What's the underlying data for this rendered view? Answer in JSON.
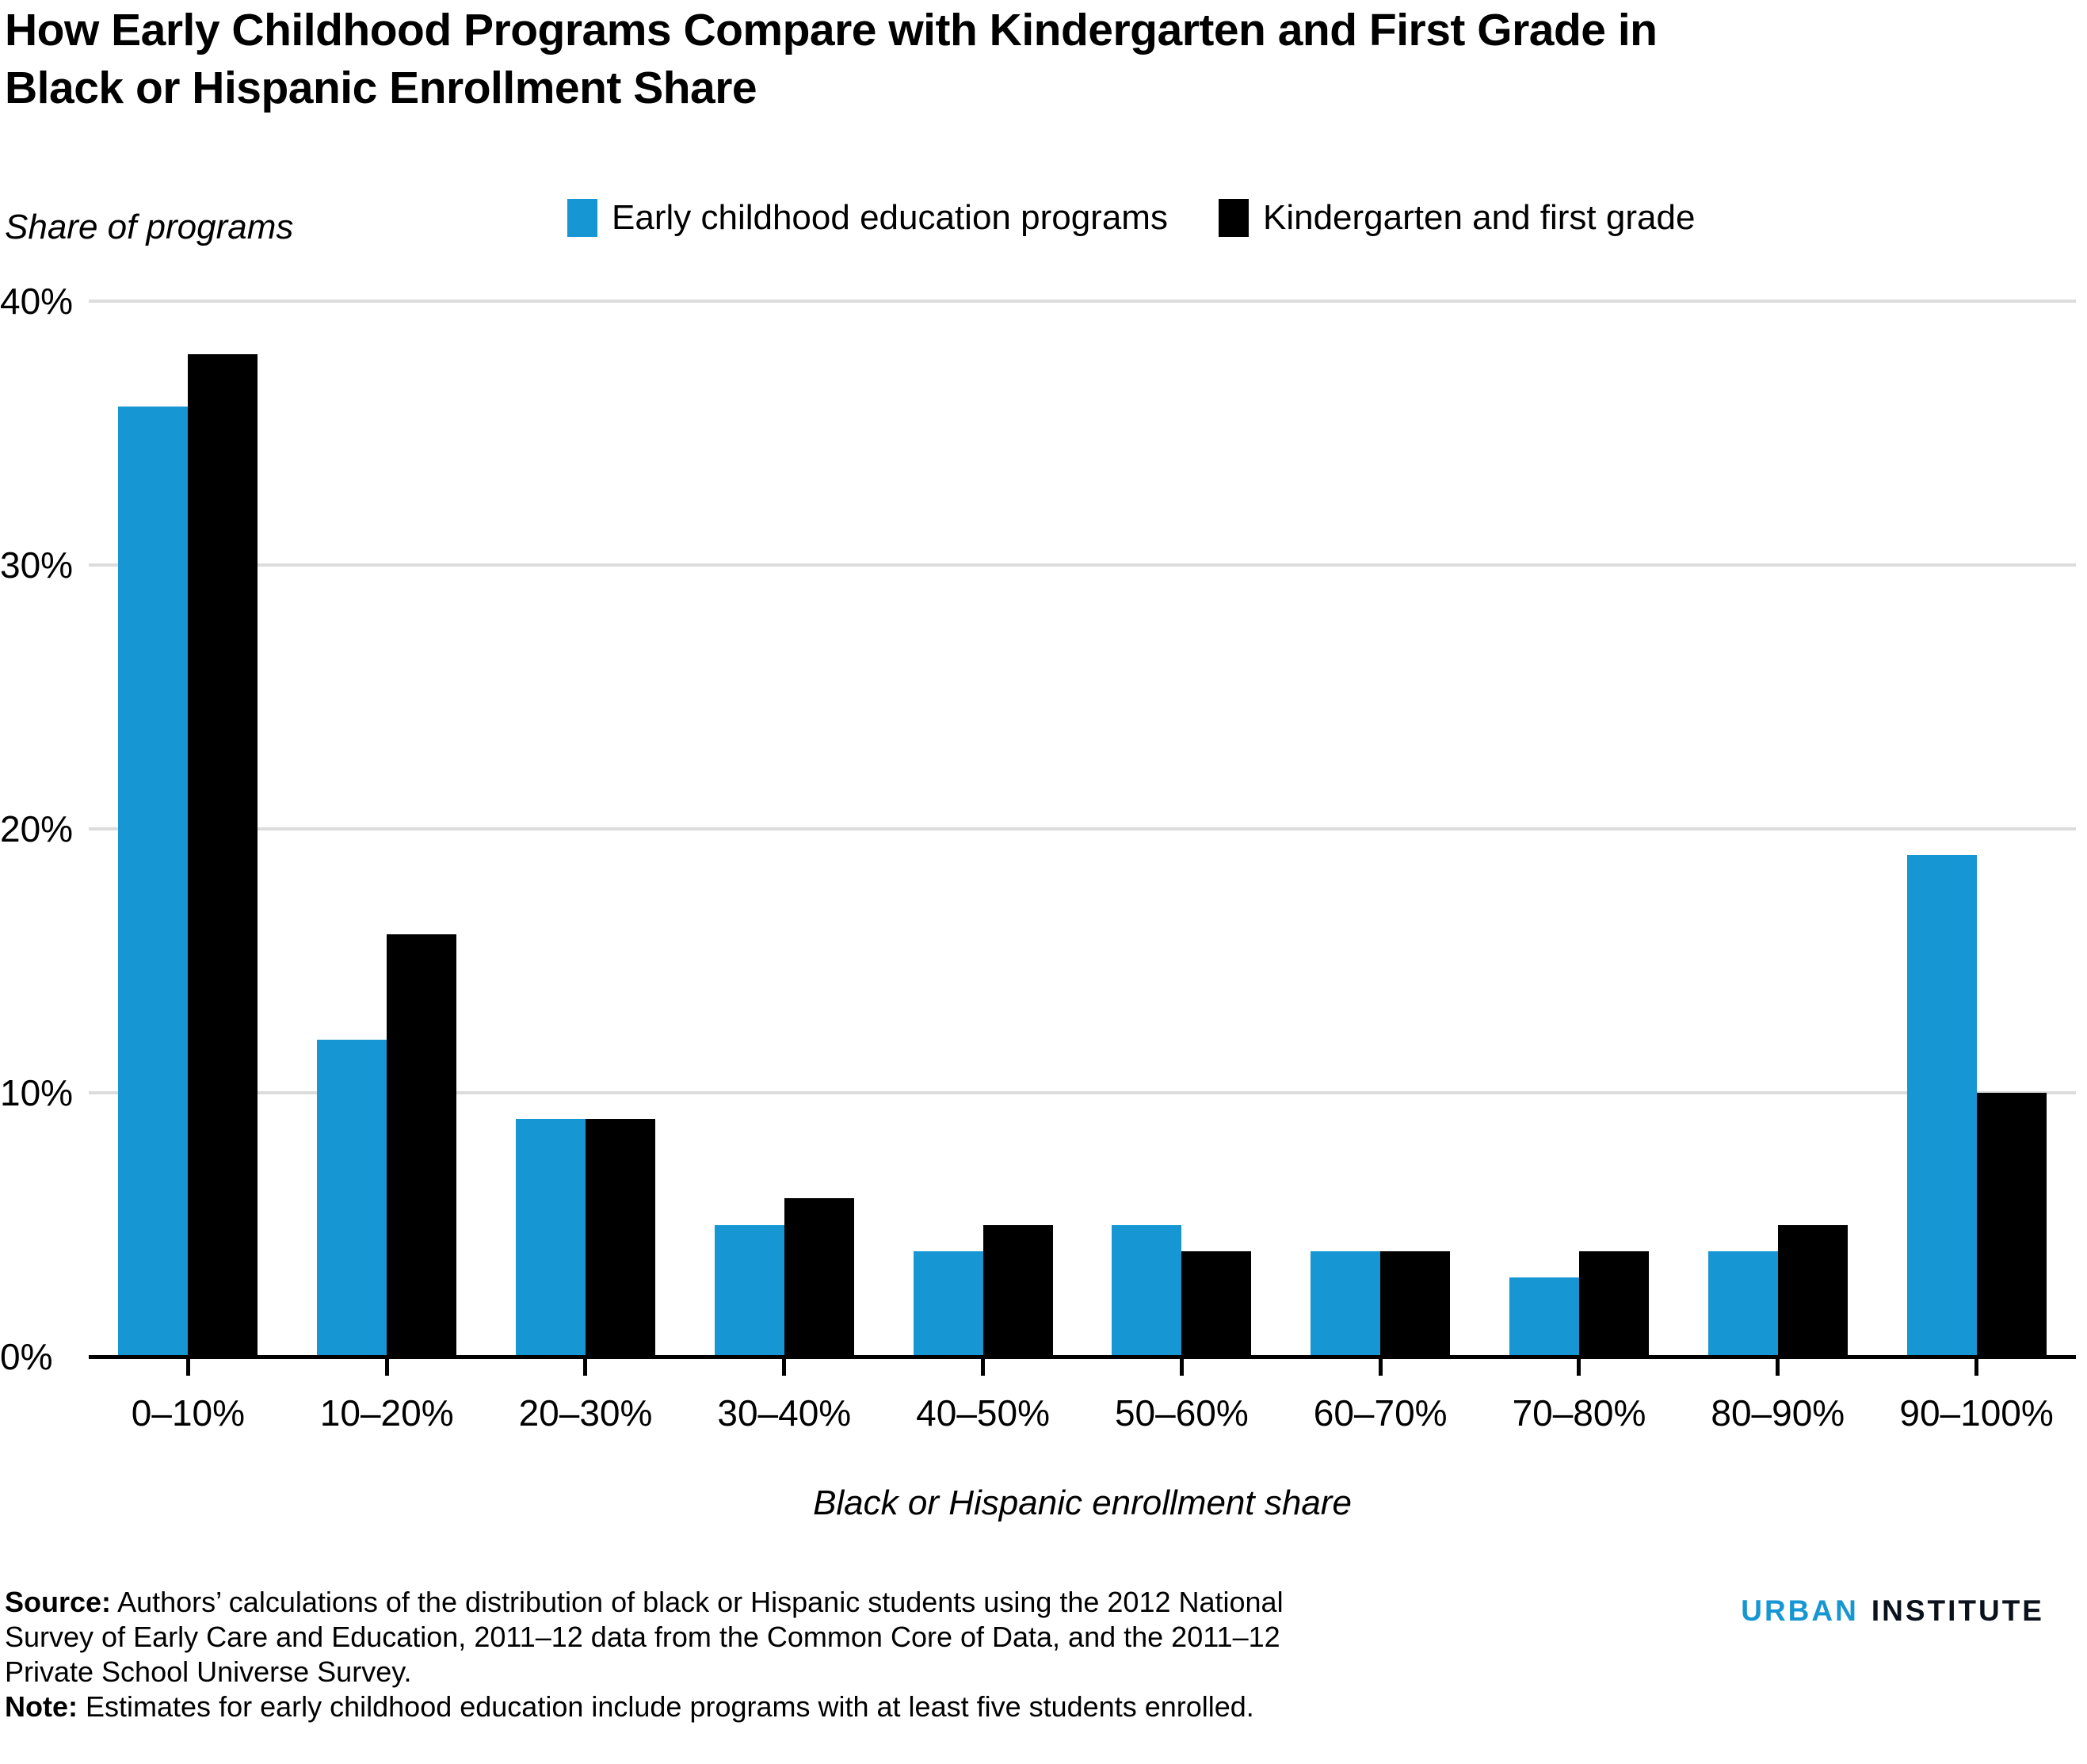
{
  "title_lines": [
    "How Early Childhood Programs Compare with Kindergarten and First Grade in",
    "Black or Hispanic Enrollment Share"
  ],
  "chart_data": {
    "type": "bar",
    "title": "How Early Childhood Programs Compare with Kindergarten and First Grade in Black or Hispanic Enrollment Share",
    "ylabel": "Share of programs",
    "xlabel": "Black or Hispanic enrollment share",
    "ylim": [
      0,
      40
    ],
    "ytick_labels": [
      "40%",
      "30%",
      "20%",
      "10%",
      "0%"
    ],
    "grid": true,
    "legend_position": "top",
    "categories": [
      "0–10%",
      "10–20%",
      "20–30%",
      "30–40%",
      "40–50%",
      "50–60%",
      "60–70%",
      "70–80%",
      "80–90%",
      "90–100%"
    ],
    "series": [
      {
        "name": "Early childhood education programs",
        "color": "#1696d2",
        "values": [
          36,
          12,
          9,
          5,
          4,
          5,
          4,
          3,
          4,
          19
        ]
      },
      {
        "name": "Kindergarten and first grade",
        "color": "#000000",
        "values": [
          38,
          16,
          9,
          6,
          5,
          4,
          4,
          4,
          5,
          10
        ]
      }
    ]
  },
  "footer": {
    "source_label": "Source:",
    "source_lines": [
      "Authors’ calculations of the distribution of black or Hispanic students using the 2012 National",
      "Survey of Early Care and Education, 2011–12 data from the Common Core of Data, and the 2011–12",
      "Private School Universe Survey."
    ],
    "note_label": "Note:",
    "note_text": "Estimates for early childhood education include programs with at least five students enrolled.",
    "logo": {
      "urban": "URBAN",
      "institute": "INSTITUTE"
    }
  },
  "colors": {
    "accent_blue": "#1696d2",
    "bar_black": "#000000",
    "gridline": "#dcdcdc"
  }
}
